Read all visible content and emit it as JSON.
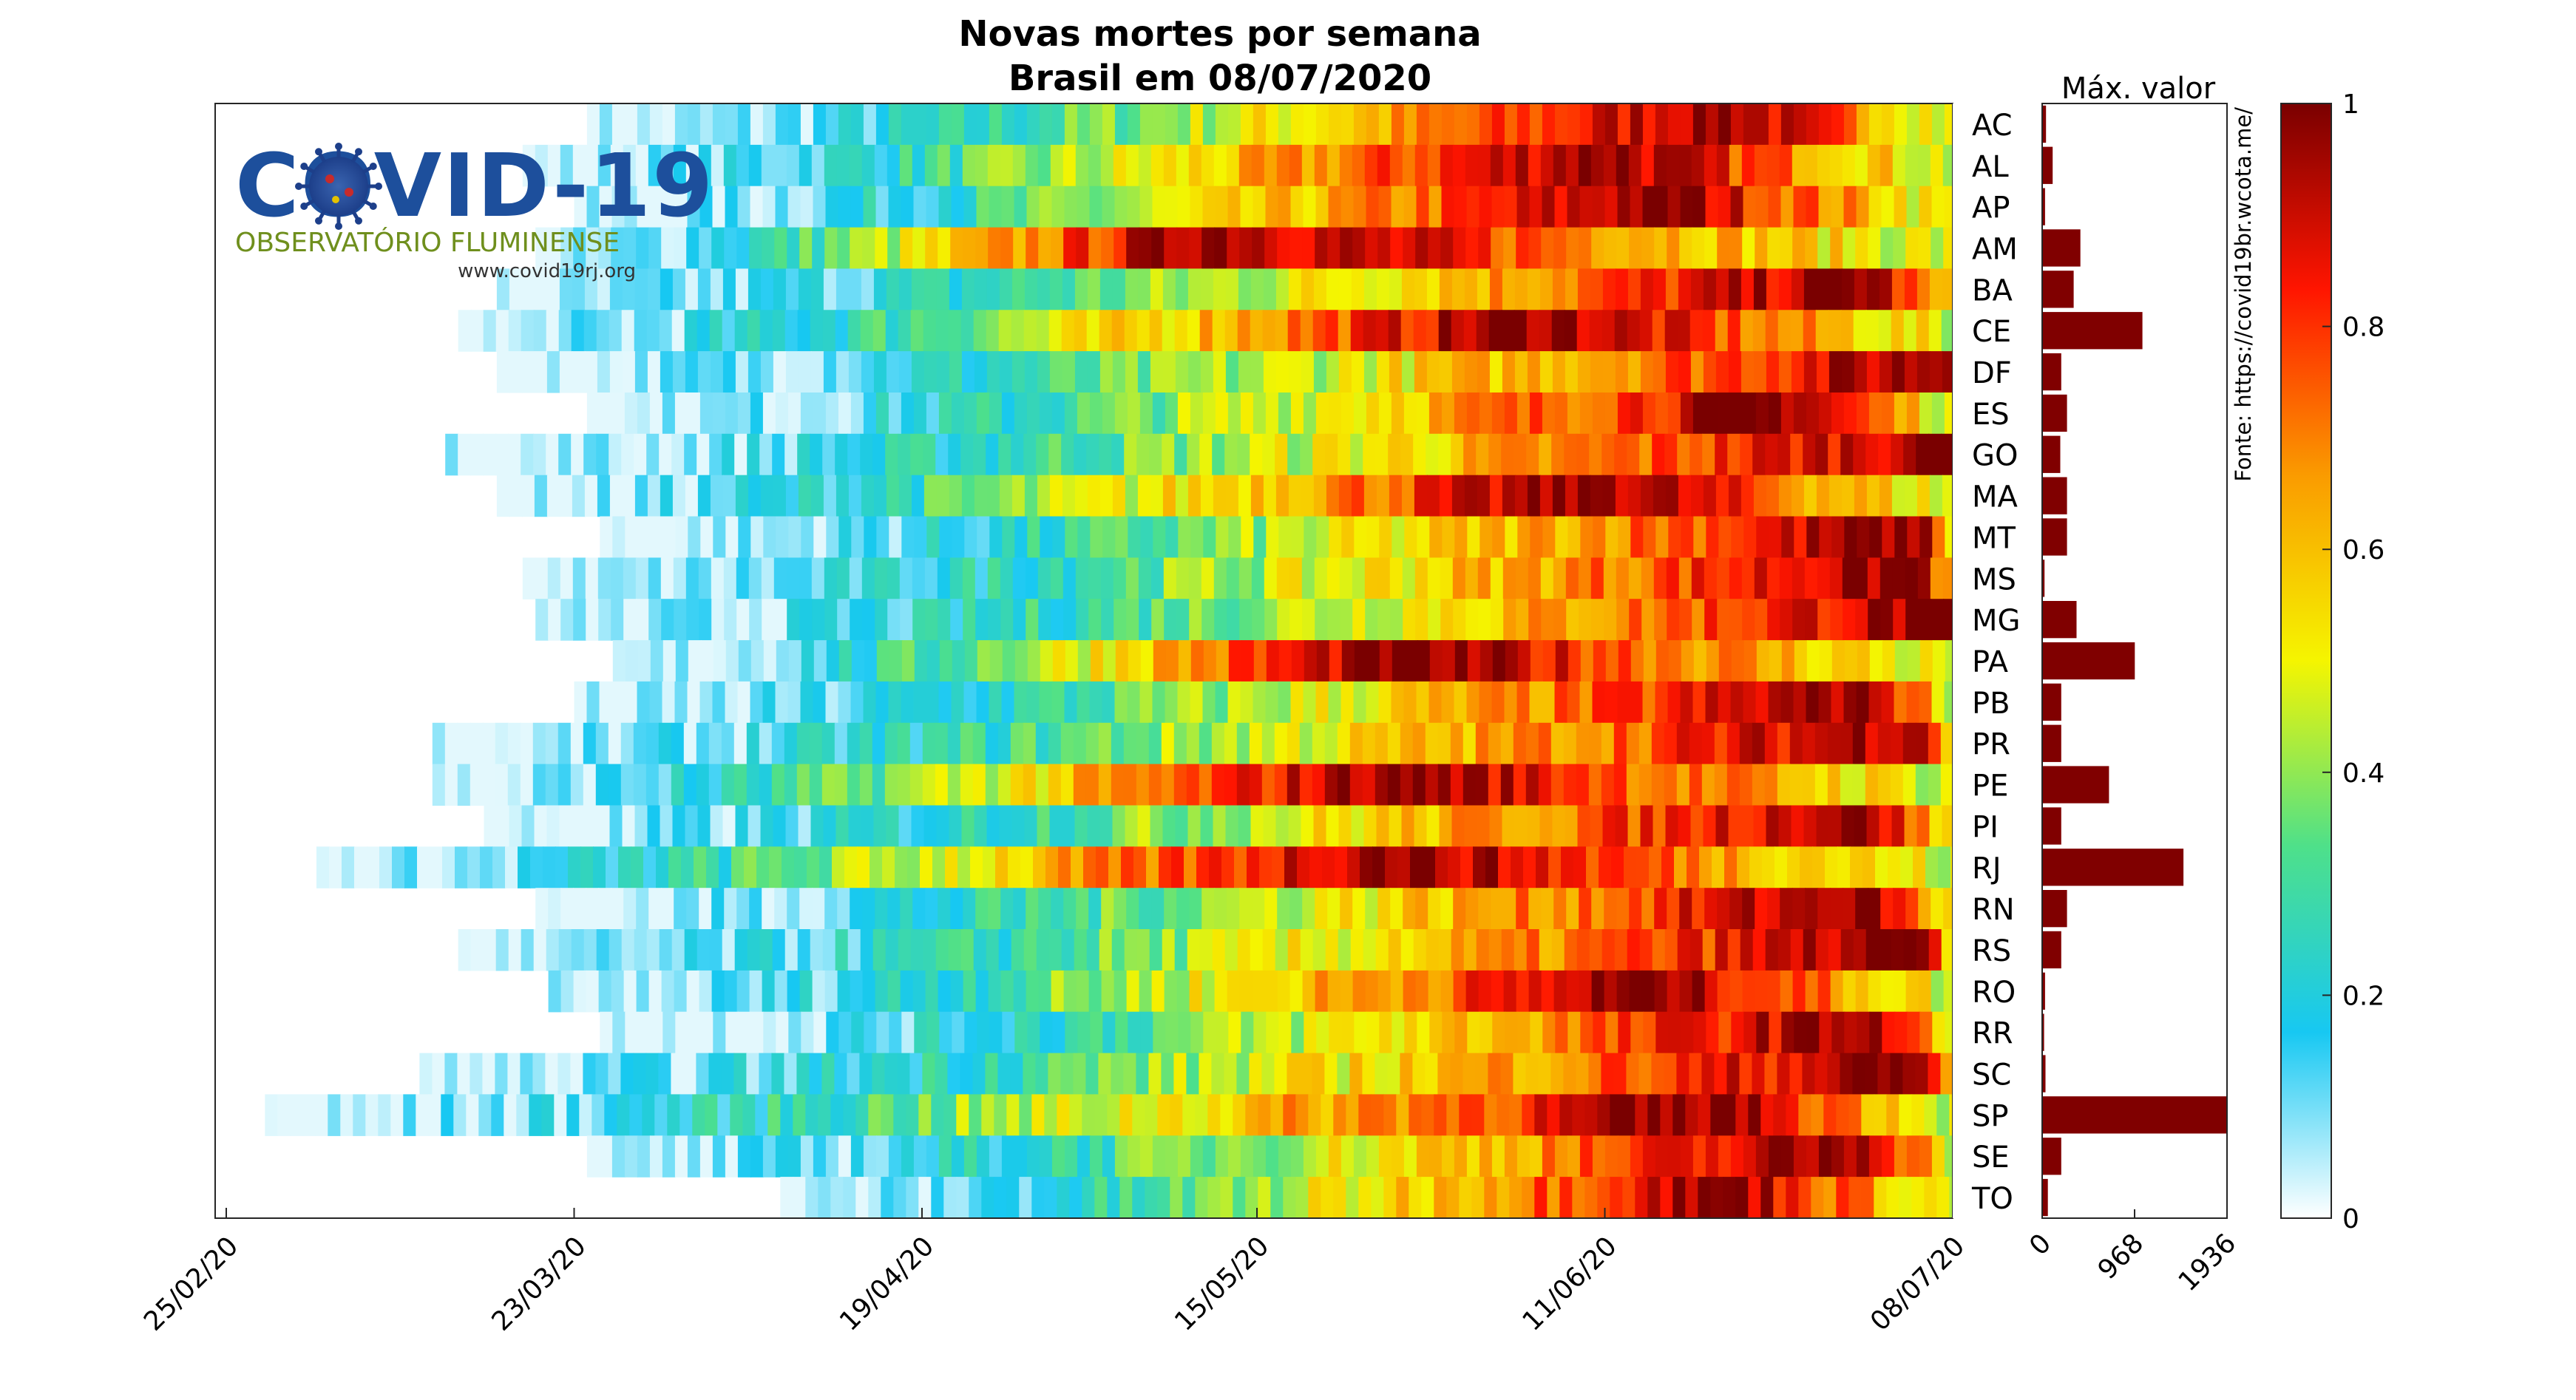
{
  "logo": {
    "title": "COVID-19",
    "subtitle": "OBSERVATÓRIO FLUMINENSE",
    "url": "www.covid19rj.org"
  },
  "chart_data": [
    {
      "type": "heatmap",
      "title": "Novas mortes por semana",
      "subtitle": "Brasil em 08/07/2020",
      "xlabel": "",
      "ylabel": "",
      "x_ticks": [
        "25/02/20",
        "23/03/20",
        "19/04/20",
        "15/05/20",
        "11/06/20",
        "08/07/20"
      ],
      "x_range": [
        "25/02/20",
        "08/07/20"
      ],
      "states": [
        "AC",
        "AL",
        "AP",
        "AM",
        "BA",
        "CE",
        "DF",
        "ES",
        "GO",
        "MA",
        "MT",
        "MS",
        "MG",
        "PA",
        "PB",
        "PR",
        "PE",
        "PI",
        "RJ",
        "RN",
        "RS",
        "RO",
        "RR",
        "SC",
        "SP",
        "SE",
        "TO"
      ],
      "start_dates": [
        "24/03/20",
        "19/03/20",
        "23/03/20",
        "20/03/20",
        "17/03/20",
        "14/03/20",
        "17/03/20",
        "24/03/20",
        "13/03/20",
        "17/03/20",
        "25/03/20",
        "19/03/20",
        "20/03/20",
        "26/03/20",
        "23/03/20",
        "12/03/20",
        "12/03/20",
        "16/03/20",
        "03/03/20",
        "20/03/20",
        "14/03/20",
        "21/03/20",
        "25/03/20",
        "11/03/20",
        "28/02/20",
        "24/03/20",
        "08/04/20"
      ],
      "normalized_values_note": "cell color = weekly deaths normalized by each state's maximum (0-1)",
      "peak_dates": [
        "20/06/20",
        "10/06/20",
        "15/06/20",
        "10/05/20",
        "01/07/20",
        "05/06/20",
        "08/07/20",
        "25/06/20",
        "08/07/20",
        "10/06/20",
        "05/07/20",
        "05/07/20",
        "08/07/20",
        "25/05/20",
        "01/07/20",
        "05/07/20",
        "25/05/20",
        "01/07/20",
        "25/05/20",
        "01/07/20",
        "05/07/20",
        "15/06/20",
        "01/07/20",
        "05/07/20",
        "20/06/20",
        "01/07/20",
        "20/06/20"
      ],
      "colormap": [
        "#ffffff",
        "#17c8f2",
        "#4ee08a",
        "#f5f500",
        "#fa9b00",
        "#ff1500",
        "#7a0000"
      ]
    },
    {
      "type": "bar",
      "title": "Máx. valor",
      "categories": [
        "AC",
        "AL",
        "AP",
        "AM",
        "BA",
        "CE",
        "DF",
        "ES",
        "GO",
        "MA",
        "MT",
        "MS",
        "MG",
        "PA",
        "PB",
        "PR",
        "PE",
        "PI",
        "RJ",
        "RN",
        "RS",
        "RO",
        "RR",
        "SC",
        "SP",
        "SE",
        "TO"
      ],
      "values": [
        40,
        110,
        30,
        400,
        330,
        1050,
        200,
        260,
        190,
        260,
        260,
        25,
        360,
        970,
        200,
        200,
        700,
        200,
        1480,
        260,
        200,
        30,
        20,
        35,
        1936,
        200,
        60
      ],
      "xlim": [
        0,
        1936
      ],
      "x_ticks": [
        "0",
        "968",
        "1936"
      ],
      "color": "#800000"
    },
    {
      "type": "colorbar",
      "range": [
        0,
        1
      ],
      "ticks": [
        "0",
        "0.2",
        "0.4",
        "0.6",
        "0.8",
        "1"
      ]
    }
  ],
  "source": "Fonte: https://covid19br.wcota.me/"
}
